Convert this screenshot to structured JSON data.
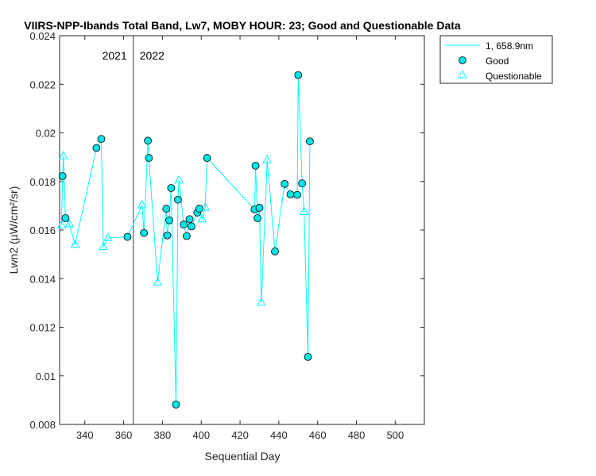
{
  "chart_data": {
    "type": "line",
    "title": "VIIRS-NPP-Ibands Total Band, Lw7, MOBY HOUR: 23;  Good and Questionable Data",
    "xlabel": "Sequential Day",
    "ylabel": "Lwn2 (µW/cm²/sr)",
    "xlim": [
      327,
      515
    ],
    "ylim": [
      0.008,
      0.024
    ],
    "xticks": [
      340,
      360,
      380,
      400,
      420,
      440,
      460,
      480,
      500
    ],
    "yticks": [
      0.008,
      0.01,
      0.012,
      0.014,
      0.016,
      0.018,
      0.02,
      0.022,
      0.024
    ],
    "xtick_labels": [
      "340",
      "360",
      "380",
      "400",
      "420",
      "440",
      "460",
      "480",
      "500"
    ],
    "ytick_labels": [
      "0.008",
      "0.01",
      "0.012",
      "0.014",
      "0.016",
      "0.018",
      "0.02",
      "0.022",
      "0.024"
    ],
    "grid": false,
    "legend_position": "outside-top-right",
    "colors": {
      "line": "#00ffff",
      "marker_fill": "#00e5e5",
      "marker_edge": "#000000",
      "axis": "#262626",
      "divider": "#404040"
    },
    "year_divider": {
      "x": 365,
      "left_label": "2021",
      "right_label": "2022"
    },
    "series": [
      {
        "name": "1, 658.9nm",
        "style": "line",
        "x": [
          328,
          328.5,
          329,
          330,
          332,
          335,
          346,
          348.5,
          349.5,
          352,
          362,
          369.5,
          370.5,
          372.5,
          373,
          377.5,
          382,
          382.5,
          383.5,
          384.5,
          387,
          388,
          388.5,
          391,
          392.5,
          394,
          395,
          398,
          399,
          400.5,
          402,
          403,
          427.5,
          428,
          429,
          430,
          431,
          434,
          438,
          443,
          446,
          449.5,
          450,
          452,
          453,
          455,
          456
        ],
        "y": [
          0.0162,
          0.01822,
          0.01905,
          0.01649,
          0.01625,
          0.0154,
          0.01938,
          0.01975,
          0.01531,
          0.01568,
          0.01572,
          0.01703,
          0.01588,
          0.01968,
          0.01897,
          0.01385,
          0.01688,
          0.01578,
          0.0164,
          0.01773,
          0.00882,
          0.01725,
          0.01805,
          0.01623,
          0.01575,
          0.01645,
          0.01615,
          0.01672,
          0.01688,
          0.01645,
          0.01693,
          0.01897,
          0.01685,
          0.01865,
          0.01649,
          0.01692,
          0.01302,
          0.01888,
          0.01512,
          0.0179,
          0.01747,
          0.01745,
          0.02238,
          0.01792,
          0.01675,
          0.01078,
          0.01965
        ]
      },
      {
        "name": "Good",
        "style": "marker-circle",
        "x": [
          328.5,
          330,
          346,
          348.5,
          362,
          370.5,
          372.5,
          373,
          382,
          382.5,
          383.5,
          384.5,
          387,
          388,
          391,
          392.5,
          394,
          395,
          398,
          399,
          403,
          427.5,
          428,
          429,
          430,
          438,
          443,
          446,
          449.5,
          450,
          452,
          455,
          456
        ],
        "y": [
          0.01822,
          0.01649,
          0.01938,
          0.01975,
          0.01572,
          0.01588,
          0.01968,
          0.01897,
          0.01688,
          0.01578,
          0.0164,
          0.01773,
          0.00882,
          0.01725,
          0.01623,
          0.01575,
          0.01645,
          0.01615,
          0.01672,
          0.01688,
          0.01897,
          0.01685,
          0.01865,
          0.01649,
          0.01692,
          0.01512,
          0.0179,
          0.01747,
          0.01745,
          0.02238,
          0.01792,
          0.01078,
          0.01965
        ]
      },
      {
        "name": "Questionable",
        "style": "marker-triangle",
        "x": [
          328,
          329,
          332,
          335,
          349.5,
          352,
          369.5,
          377.5,
          388.5,
          400.5,
          402,
          431,
          434,
          453
        ],
        "y": [
          0.0162,
          0.01905,
          0.01625,
          0.0154,
          0.01531,
          0.01568,
          0.01703,
          0.01385,
          0.01805,
          0.01645,
          0.01693,
          0.01302,
          0.01888,
          0.01675
        ]
      }
    ]
  }
}
